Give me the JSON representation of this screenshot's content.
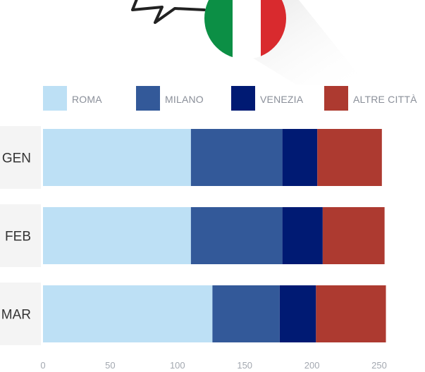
{
  "chart_data": {
    "type": "bar",
    "orientation": "horizontal",
    "stacked": true,
    "categories": [
      "GEN",
      "FEB",
      "MAR"
    ],
    "series": [
      {
        "name": "ROMA",
        "color": "#bde0f5",
        "values": [
          110,
          110,
          126
        ]
      },
      {
        "name": "MILANO",
        "color": "#335999",
        "values": [
          68,
          68,
          50
        ]
      },
      {
        "name": "VENEZIA",
        "color": "#001a73",
        "values": [
          26,
          30,
          27
        ]
      },
      {
        "name": "ALTRE CITTÀ",
        "color": "#ad3a30",
        "values": [
          48,
          46,
          52
        ]
      }
    ],
    "xlim": [
      0,
      250
    ],
    "xticks": [
      0,
      50,
      100,
      150,
      200,
      250
    ],
    "grid": false,
    "legend_position": "top"
  },
  "decoration": {
    "flag_colors": [
      "#0c8f45",
      "#ffffff",
      "#d92a2e"
    ],
    "icon": "speech-bubble-icon"
  }
}
